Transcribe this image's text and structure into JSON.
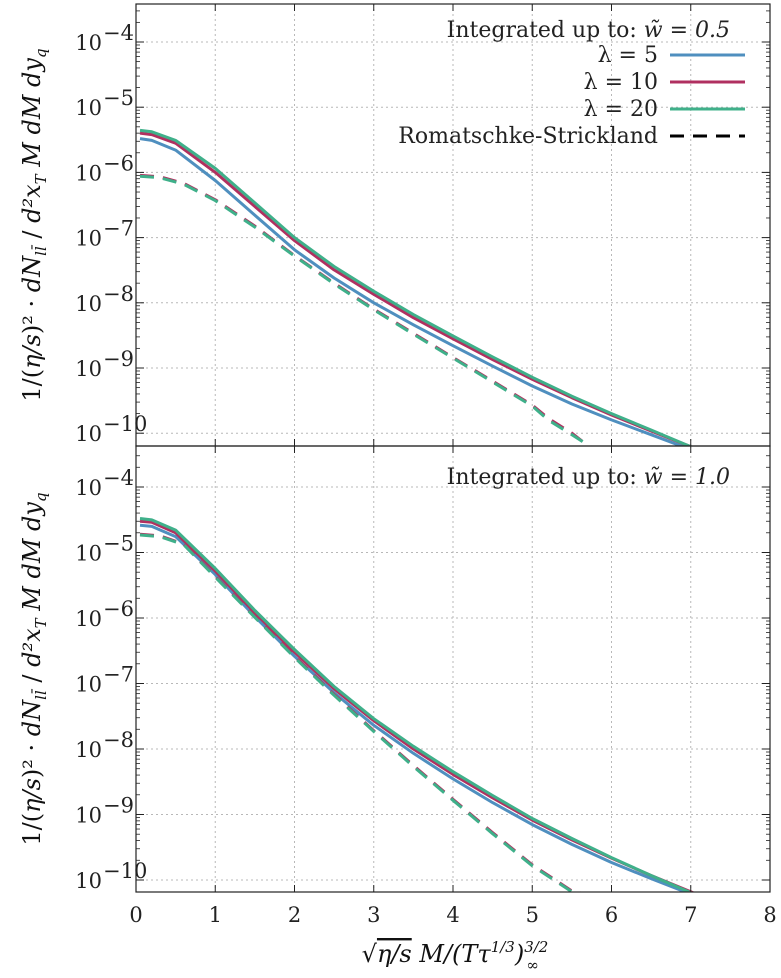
{
  "chart_data": [
    {
      "type": "line",
      "panel": "top",
      "title": "Integrated up to: w̃ = 0.5",
      "xlabel": "√(η/s) M/(Tτ^{1/3})_∞^{3/2}",
      "ylabel": "1/(η/s)² · dN_{ll̄}/(d²x_T M dM dy_q)",
      "xlim": [
        0,
        8
      ],
      "ylim": [
        5e-11,
        0.0005
      ],
      "yscale": "log",
      "grid": true,
      "legend_position": "top-right",
      "x_ticks": [
        "0",
        "1",
        "2",
        "3",
        "4",
        "5",
        "6",
        "7",
        "8"
      ],
      "y_ticks": [
        {
          "value": 1e-10,
          "label": "10",
          "exp": "−10"
        },
        {
          "value": 1e-09,
          "label": "10",
          "exp": "−9"
        },
        {
          "value": 1e-08,
          "label": "10",
          "exp": "−8"
        },
        {
          "value": 1e-07,
          "label": "10",
          "exp": "−7"
        },
        {
          "value": 1e-06,
          "label": "10",
          "exp": "−6"
        },
        {
          "value": 1e-05,
          "label": "10",
          "exp": "−5"
        },
        {
          "value": 0.0001,
          "label": "10",
          "exp": "−4"
        }
      ],
      "series": [
        {
          "name": "λ = 5",
          "color": "#4f8fbf",
          "dash": false,
          "x": [
            0.05,
            0.2,
            0.5,
            1,
            1.5,
            2,
            2.5,
            3,
            3.5,
            4,
            4.5,
            5,
            5.5,
            6,
            6.5,
            7
          ],
          "y": [
            3.3e-06,
            3.1e-06,
            2.2e-06,
            7.5e-07,
            2.2e-07,
            6.5e-08,
            2.4e-08,
            1e-08,
            4.6e-09,
            2.2e-09,
            1.07e-09,
            5.3e-10,
            2.8e-10,
            1.6e-10,
            9.5e-11,
            5.6e-11
          ]
        },
        {
          "name": "λ = 10",
          "color": "#b03060",
          "dash": false,
          "x": [
            0.05,
            0.2,
            0.5,
            1,
            1.5,
            2,
            2.5,
            3,
            3.5,
            4,
            4.5,
            5,
            5.5,
            6,
            6.5,
            7,
            7.1
          ],
          "y": [
            4e-06,
            3.8e-06,
            2.8e-06,
            1e-06,
            3e-07,
            9e-08,
            3.2e-08,
            1.35e-08,
            5.9e-09,
            2.8e-09,
            1.35e-09,
            6.7e-10,
            3.5e-10,
            1.9e-10,
            1.08e-10,
            6.2e-11,
            5.5e-11
          ]
        },
        {
          "name": "λ = 20",
          "color": "#3fb08a",
          "dash": false,
          "x": [
            0.05,
            0.2,
            0.5,
            1,
            1.5,
            2,
            2.5,
            3,
            3.5,
            4,
            4.5,
            5,
            5.5,
            6,
            6.5,
            7,
            7.1
          ],
          "y": [
            4.4e-06,
            4.2e-06,
            3.1e-06,
            1.15e-06,
            3.4e-07,
            1e-07,
            3.6e-08,
            1.5e-08,
            6.6e-09,
            3.1e-09,
            1.48e-09,
            7.2e-10,
            3.7e-10,
            2e-10,
            1.12e-10,
            6.2e-11,
            5.3e-11
          ]
        },
        {
          "name": "Romatschke-Strickland",
          "color": "#000000",
          "dash": true,
          "x": [],
          "y": []
        },
        {
          "name": "",
          "color": "#b03060",
          "dash": true,
          "x": [
            0.05,
            0.3,
            0.6,
            1,
            1.5,
            2,
            2.5,
            3,
            3.5,
            4,
            4.5,
            5,
            5.2,
            5.5,
            5.75
          ],
          "y": [
            9e-07,
            8.6e-07,
            6.8e-07,
            3.8e-07,
            1.5e-07,
            5.3e-08,
            2e-08,
            8e-09,
            3.4e-09,
            1.45e-09,
            6.3e-10,
            2.7e-10,
            1.7e-10,
            1e-10,
            5.8e-11
          ]
        },
        {
          "name": "",
          "color": "#3fb08a",
          "dash": true,
          "x": [
            0.05,
            0.3,
            0.6,
            1,
            1.5,
            2,
            2.5,
            3,
            3.5,
            4,
            4.5,
            5,
            5.2,
            5.5,
            5.8
          ],
          "y": [
            8.7e-07,
            8.3e-07,
            6.6e-07,
            3.7e-07,
            1.45e-07,
            5.2e-08,
            1.95e-08,
            7.8e-09,
            3.3e-09,
            1.42e-09,
            6.1e-10,
            2.6e-10,
            1.6e-10,
            9.5e-11,
            5.5e-11
          ]
        }
      ]
    },
    {
      "type": "line",
      "panel": "bottom",
      "title": "Integrated up to: w̃ = 1.0",
      "xlabel": "√(η/s) M/(Tτ^{1/3})_∞^{3/2}",
      "ylabel": "1/(η/s)² · dN_{ll̄}/(d²x_T M dM dy_q)",
      "xlim": [
        0,
        8
      ],
      "ylim": [
        5e-11,
        0.0005
      ],
      "yscale": "log",
      "grid": true,
      "x_ticks": [
        "0",
        "1",
        "2",
        "3",
        "4",
        "5",
        "6",
        "7",
        "8"
      ],
      "y_ticks": [
        {
          "value": 1e-10,
          "label": "10",
          "exp": "−10"
        },
        {
          "value": 1e-09,
          "label": "10",
          "exp": "−9"
        },
        {
          "value": 1e-08,
          "label": "10",
          "exp": "−8"
        },
        {
          "value": 1e-07,
          "label": "10",
          "exp": "−7"
        },
        {
          "value": 1e-06,
          "label": "10",
          "exp": "−6"
        },
        {
          "value": 1e-05,
          "label": "10",
          "exp": "−5"
        },
        {
          "value": 0.0001,
          "label": "10",
          "exp": "−4"
        }
      ],
      "series": [
        {
          "name": "λ = 5",
          "color": "#4f8fbf",
          "dash": false,
          "x": [
            0.05,
            0.2,
            0.5,
            1,
            1.5,
            2,
            2.5,
            3,
            3.5,
            4,
            4.5,
            5,
            5.5,
            6,
            6.5,
            7,
            7.1
          ],
          "y": [
            2.6e-05,
            2.5e-05,
            1.75e-05,
            4.6e-06,
            1.05e-06,
            2.6e-07,
            7.2e-08,
            2.3e-08,
            8.6e-09,
            3.5e-09,
            1.52e-09,
            7e-10,
            3.5e-10,
            1.85e-10,
            1.05e-10,
            6.1e-11,
            5.6e-11
          ]
        },
        {
          "name": "λ = 10",
          "color": "#b03060",
          "dash": false,
          "x": [
            0.05,
            0.2,
            0.5,
            1,
            1.5,
            2,
            2.5,
            3,
            3.5,
            4,
            4.5,
            5,
            5.5,
            6,
            6.5,
            7,
            7.15
          ],
          "y": [
            3e-05,
            2.9e-05,
            2e-05,
            5.2e-06,
            1.2e-06,
            3e-07,
            8.3e-08,
            2.7e-08,
            1e-08,
            4.1e-09,
            1.8e-09,
            8.2e-10,
            4.1e-10,
            2.15e-10,
            1.17e-10,
            6.6e-11,
            5.5e-11
          ]
        },
        {
          "name": "λ = 20",
          "color": "#3fb08a",
          "dash": false,
          "x": [
            0.05,
            0.2,
            0.5,
            1,
            1.5,
            2,
            2.5,
            3,
            3.5,
            4,
            4.5,
            5,
            5.5,
            6,
            6.5,
            7,
            7.12
          ],
          "y": [
            3.3e-05,
            3.15e-05,
            2.2e-05,
            5.7e-06,
            1.3e-06,
            3.3e-07,
            9e-08,
            2.9e-08,
            1.1e-08,
            4.5e-09,
            1.95e-09,
            8.7e-10,
            4.3e-10,
            2.2e-10,
            1.17e-10,
            6.4e-11,
            5.5e-11
          ]
        },
        {
          "name": "",
          "color": "#b03060",
          "dash": true,
          "x": [
            0.05,
            0.3,
            0.6,
            1,
            1.5,
            2,
            2.5,
            3,
            3.5,
            4,
            4.5,
            5,
            5.5,
            5.8
          ],
          "y": [
            1.9e-05,
            1.8e-05,
            1.35e-05,
            4.3e-06,
            1.05e-06,
            2.6e-07,
            6.8e-08,
            1.9e-08,
            5.6e-09,
            1.7e-09,
            5.3e-10,
            1.7e-10,
            6.8e-11,
            5.6e-11
          ]
        },
        {
          "name": "",
          "color": "#3fb08a",
          "dash": true,
          "x": [
            0.05,
            0.3,
            0.6,
            1,
            1.5,
            2,
            2.5,
            3,
            3.5,
            4,
            4.5,
            5,
            5.5,
            5.85
          ],
          "y": [
            1.85e-05,
            1.75e-05,
            1.32e-05,
            4.2e-06,
            1.02e-06,
            2.5e-07,
            6.6e-08,
            1.85e-08,
            5.4e-09,
            1.65e-09,
            5.1e-10,
            1.65e-10,
            6.6e-11,
            5.3e-11
          ]
        }
      ]
    }
  ]
}
